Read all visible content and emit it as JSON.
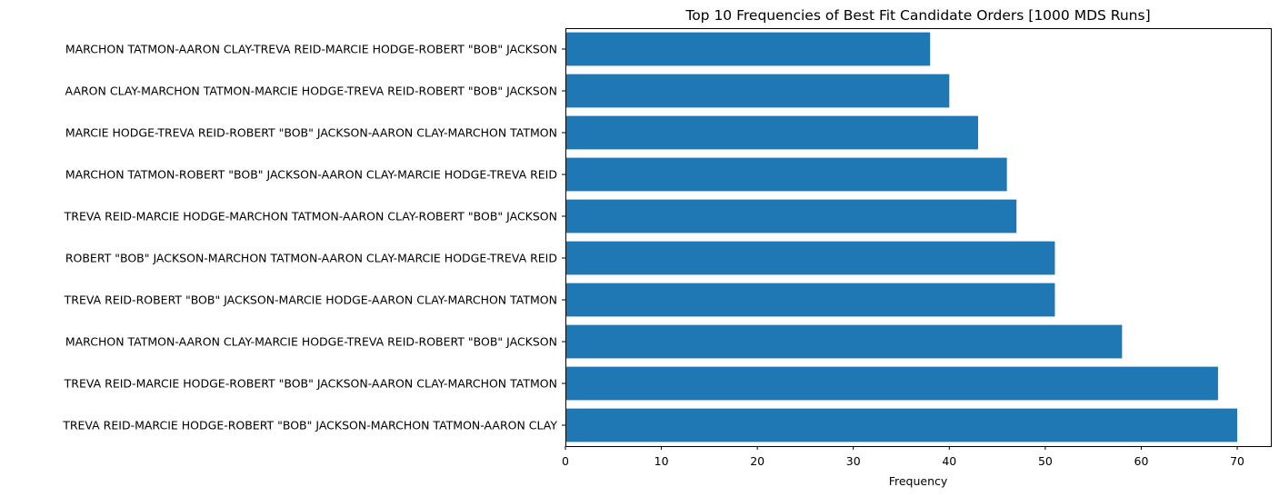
{
  "chart_data": {
    "type": "bar",
    "orientation": "horizontal",
    "title": "Top 10 Frequencies of Best Fit Candidate Orders [1000 MDS Runs]",
    "xlabel": "Frequency",
    "ylabel": "",
    "xlim": [
      0,
      73.5
    ],
    "xticks": [
      0,
      10,
      20,
      30,
      40,
      50,
      60,
      70
    ],
    "grid": false,
    "bar_color": "#1f77b4",
    "categories": [
      "MARCHON TATMON-AARON CLAY-TREVA REID-MARCIE HODGE-ROBERT \"BOB\" JACKSON",
      "AARON CLAY-MARCHON TATMON-MARCIE HODGE-TREVA REID-ROBERT \"BOB\" JACKSON",
      "MARCIE HODGE-TREVA REID-ROBERT \"BOB\" JACKSON-AARON CLAY-MARCHON TATMON",
      "MARCHON TATMON-ROBERT \"BOB\" JACKSON-AARON CLAY-MARCIE HODGE-TREVA REID",
      "TREVA REID-MARCIE HODGE-MARCHON TATMON-AARON CLAY-ROBERT \"BOB\" JACKSON",
      "ROBERT \"BOB\" JACKSON-MARCHON TATMON-AARON CLAY-MARCIE HODGE-TREVA REID",
      "TREVA REID-ROBERT \"BOB\" JACKSON-MARCIE HODGE-AARON CLAY-MARCHON TATMON",
      "MARCHON TATMON-AARON CLAY-MARCIE HODGE-TREVA REID-ROBERT \"BOB\" JACKSON",
      "TREVA REID-MARCIE HODGE-ROBERT \"BOB\" JACKSON-AARON CLAY-MARCHON TATMON",
      "TREVA REID-MARCIE HODGE-ROBERT \"BOB\" JACKSON-MARCHON TATMON-AARON CLAY"
    ],
    "values": [
      38,
      40,
      43,
      46,
      47,
      51,
      51,
      58,
      68,
      70
    ]
  }
}
